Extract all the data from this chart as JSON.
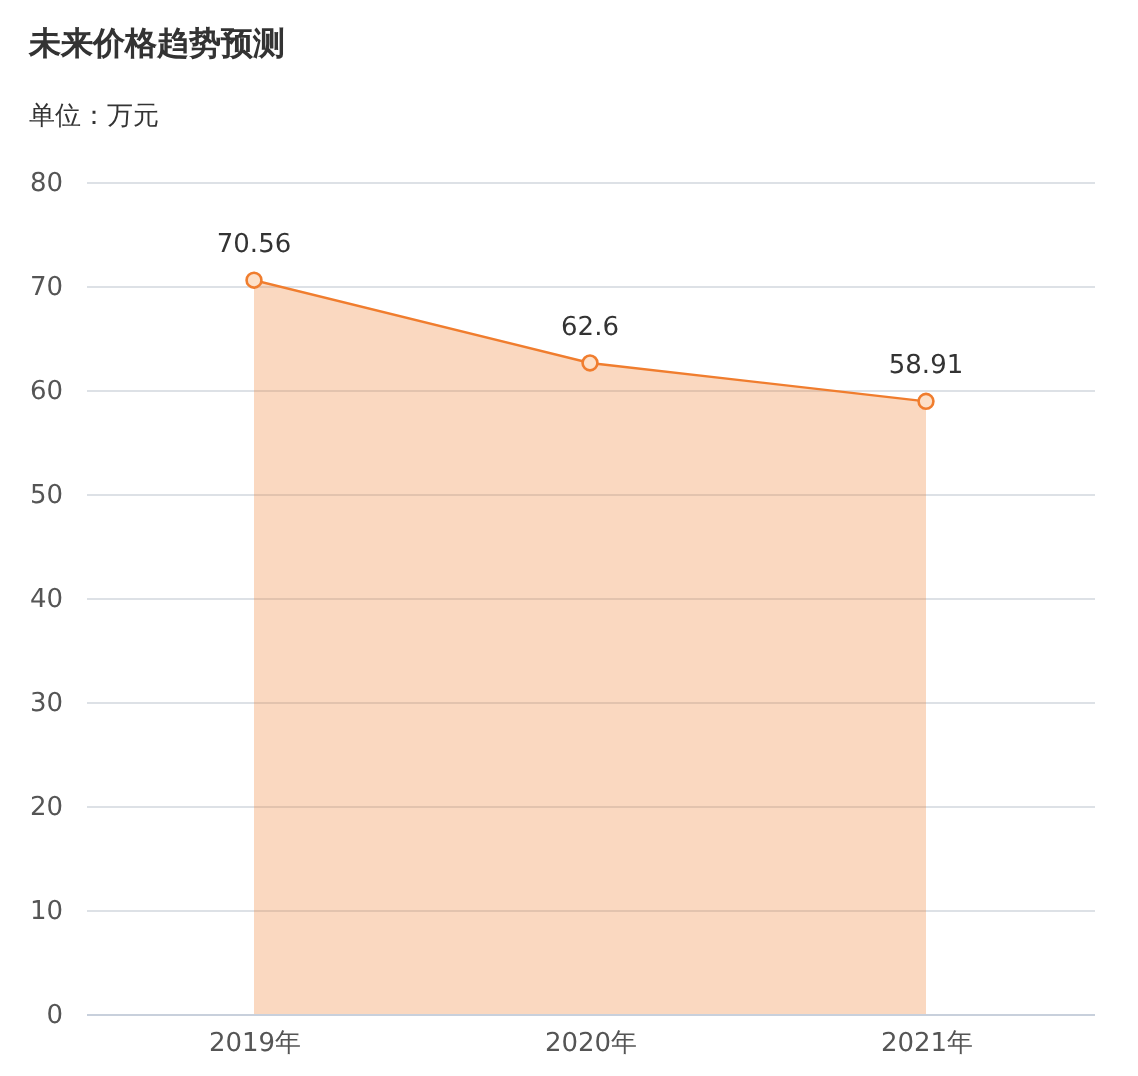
{
  "chart_data": {
    "type": "area",
    "title": "未来价格趋势预测",
    "subtitle": "单位：万元",
    "categories": [
      "2019年",
      "2020年",
      "2021年"
    ],
    "series": [
      {
        "color": "#f07d2e",
        "values": [
          70.56,
          62.6,
          58.91
        ]
      }
    ],
    "ylim": [
      0,
      80
    ],
    "yticks": [
      0,
      10,
      20,
      30,
      40,
      50,
      60,
      70,
      80
    ],
    "grid": "y",
    "marker": "circle",
    "data_labels": true
  }
}
